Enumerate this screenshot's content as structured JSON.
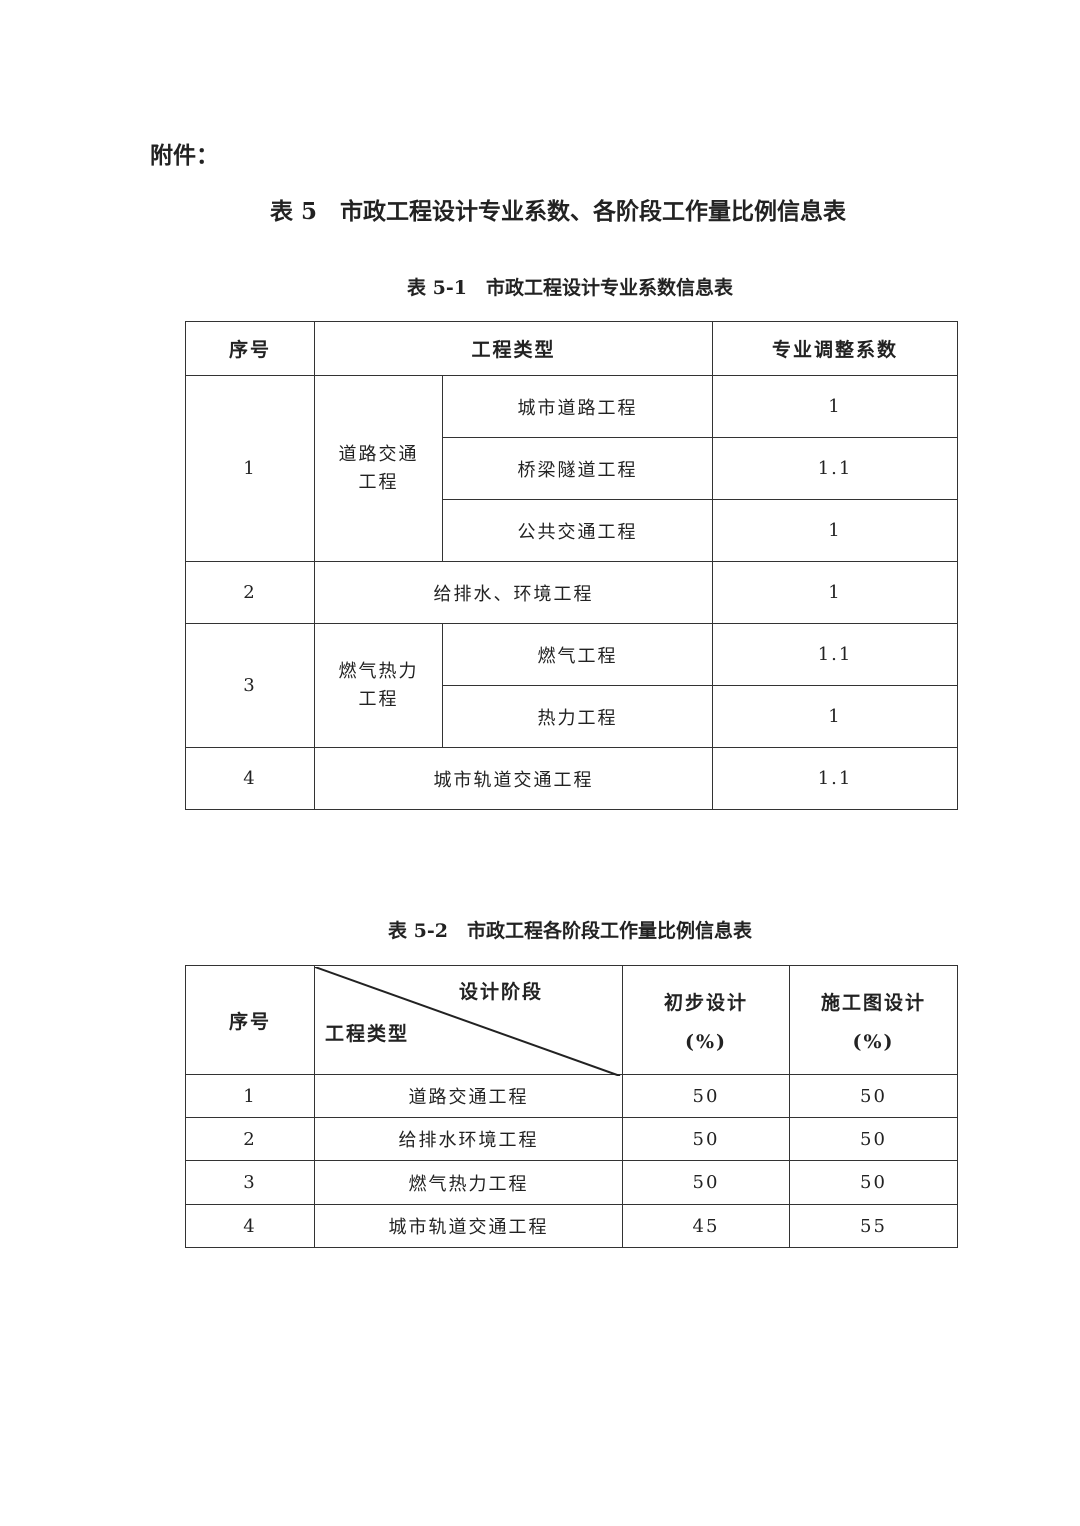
{
  "attachment_label": "附件：",
  "main_title": "表 5　市政工程设计专业系数、各阶段工作量比例信息表",
  "table1": {
    "caption": "表 5-1　市政工程设计专业系数信息表",
    "headers": {
      "no": "序号",
      "type": "工程类型",
      "coef": "专业调整系数"
    },
    "groups": [
      {
        "no": "1",
        "category": "道路交通工程",
        "items": [
          {
            "name": "城市道路工程",
            "coef": "1"
          },
          {
            "name": "桥梁隧道工程",
            "coef": "1.1"
          },
          {
            "name": "公共交通工程",
            "coef": "1"
          }
        ]
      },
      {
        "no": "2",
        "name": "给排水、环境工程",
        "coef": "1"
      },
      {
        "no": "3",
        "category": "燃气热力工程",
        "items": [
          {
            "name": "燃气工程",
            "coef": "1.1"
          },
          {
            "name": "热力工程",
            "coef": "1"
          }
        ]
      },
      {
        "no": "4",
        "name": "城市轨道交通工程",
        "coef": "1.1"
      }
    ]
  },
  "table2": {
    "caption": "表 5-2　市政工程各阶段工作量比例信息表",
    "headers": {
      "no": "序号",
      "stage": "设计阶段",
      "type": "工程类型",
      "prelim": "初步设计",
      "construction": "施工图设计",
      "unit": "(%)"
    },
    "rows": [
      {
        "no": "1",
        "name": "道路交通工程",
        "prelim": "50",
        "construction": "50"
      },
      {
        "no": "2",
        "name": "给排水环境工程",
        "prelim": "50",
        "construction": "50"
      },
      {
        "no": "3",
        "name": "燃气热力工程",
        "prelim": "50",
        "construction": "50"
      },
      {
        "no": "4",
        "name": "城市轨道交通工程",
        "prelim": "45",
        "construction": "55"
      }
    ]
  }
}
